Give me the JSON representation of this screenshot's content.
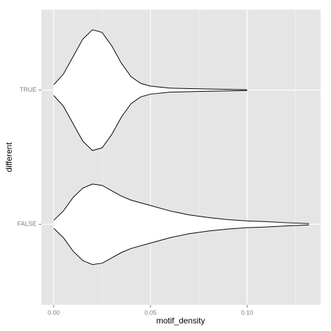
{
  "chart_data": {
    "type": "violin",
    "x_label": "motif_density",
    "y_label": "different",
    "categories": [
      "FALSE",
      "TRUE"
    ],
    "violins": [
      {
        "density_x": [
          0,
          0.005,
          0.01,
          0.015,
          0.02,
          0.025,
          0.03,
          0.035,
          0.04,
          0.05,
          0.06,
          0.07,
          0.08,
          0.09,
          0.1,
          0.11,
          0.12,
          0.132
        ],
        "half_width": [
          0.03,
          0.1,
          0.2,
          0.27,
          0.3,
          0.29,
          0.25,
          0.21,
          0.18,
          0.14,
          0.1,
          0.07,
          0.05,
          0.035,
          0.025,
          0.02,
          0.012,
          0.005
        ]
      },
      {
        "density_x": [
          0,
          0.005,
          0.01,
          0.015,
          0.02,
          0.025,
          0.03,
          0.035,
          0.04,
          0.045,
          0.05,
          0.06,
          0.075,
          0.1
        ],
        "half_width": [
          0.04,
          0.12,
          0.25,
          0.38,
          0.45,
          0.43,
          0.33,
          0.2,
          0.1,
          0.05,
          0.03,
          0.015,
          0.01,
          0.003
        ]
      }
    ],
    "xlim": [
      -0.0064,
      0.138
    ],
    "ylim": [
      0.4,
      2.6
    ],
    "xticks": [
      {
        "value": 0,
        "label": "0.00"
      },
      {
        "value": 0.05,
        "label": "0.05"
      },
      {
        "value": 0.1,
        "label": "0.10"
      }
    ],
    "minor_xticks": [
      0.025,
      0.075,
      0.125
    ],
    "grid": true,
    "panel_color": "#e5e5e5",
    "violin_color": "#ffffff"
  }
}
